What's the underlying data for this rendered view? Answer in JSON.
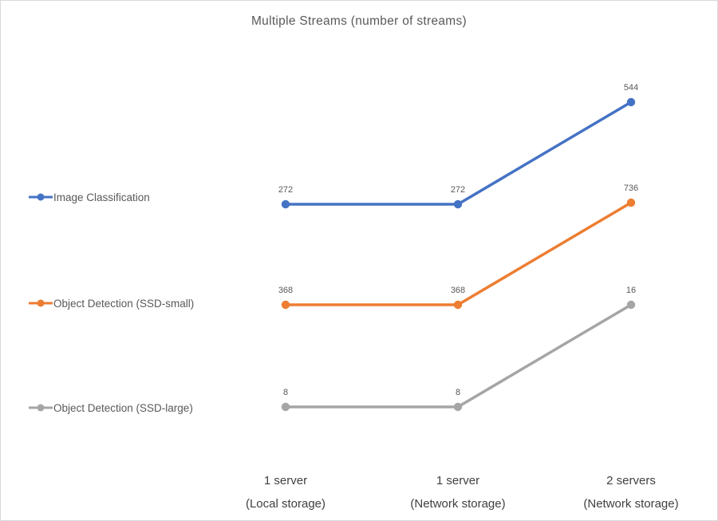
{
  "page": {
    "background": "#ffffff",
    "border_color": "#d9d9d9",
    "title_color": "#595959",
    "data_label_color": "#595959",
    "axis_label_color": "#404040"
  },
  "chart_data": {
    "type": "line",
    "title": "Multiple Streams (number of streams)",
    "categories": [
      "1 server\n(Local storage)",
      "1 server\n(Network storage)",
      "2 servers\n(Network storage)"
    ],
    "series": [
      {
        "name": "Image Classification",
        "color": "#4472C4",
        "values": [
          272,
          272,
          544
        ]
      },
      {
        "name": "Object Detection (SSD-small)",
        "color": "#ED7D31",
        "values": [
          368,
          368,
          736
        ]
      },
      {
        "name": "Object Detection (SSD-large)",
        "color": "#A5A5A5",
        "values": [
          8,
          8,
          16
        ]
      }
    ],
    "data_labels": true,
    "grid": false,
    "y_axis_visible": false,
    "x_axis_line_visible": false,
    "legend_position": "left"
  }
}
